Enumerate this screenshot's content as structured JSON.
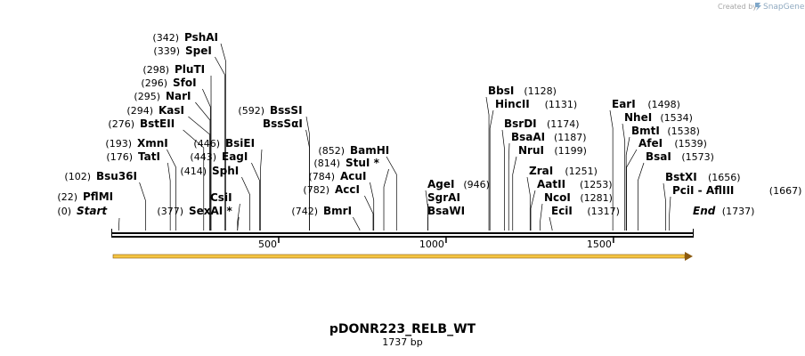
{
  "credit": "Created by",
  "brand": "SnapGene",
  "plasmid": {
    "name": "pDONR223_RELB_WT",
    "length_label": "1737 bp",
    "length": 1737
  },
  "ticks": [
    500,
    1000,
    1500
  ],
  "sites": [
    {
      "name": "Start",
      "pos": 0,
      "pos_label": "(0)",
      "italic": true
    },
    {
      "name": "PflMI",
      "pos": 22,
      "pos_label": "(22)"
    },
    {
      "name": "Bsu36I",
      "pos": 102,
      "pos_label": "(102)"
    },
    {
      "name": "TatI",
      "pos": 176,
      "pos_label": "(176)"
    },
    {
      "name": "XmnI",
      "pos": 193,
      "pos_label": "(193)"
    },
    {
      "name": "BstEII",
      "pos": 276,
      "pos_label": "(276)"
    },
    {
      "name": "KasI",
      "pos": 294,
      "pos_label": "(294)"
    },
    {
      "name": "NarI",
      "pos": 295,
      "pos_label": "(295)"
    },
    {
      "name": "SfoI",
      "pos": 296,
      "pos_label": "(296)"
    },
    {
      "name": "PluTI",
      "pos": 298,
      "pos_label": "(298)"
    },
    {
      "name": "SpeI",
      "pos": 339,
      "pos_label": "(339)"
    },
    {
      "name": "PshAI",
      "pos": 342,
      "pos_label": "(342)"
    },
    {
      "name": "SexAI *",
      "pos": 377,
      "pos_label": "(377)"
    },
    {
      "name": "CsiI",
      "pos": 377,
      "pos_label": ""
    },
    {
      "name": "SphI",
      "pos": 414,
      "pos_label": "(414)"
    },
    {
      "name": "EagI",
      "pos": 443,
      "pos_label": "(443)"
    },
    {
      "name": "BsiEI",
      "pos": 446,
      "pos_label": "(446)"
    },
    {
      "name": "BssSαI",
      "pos": 592,
      "pos_label": ""
    },
    {
      "name": "BssSI",
      "pos": 592,
      "pos_label": "(592)"
    },
    {
      "name": "BmrI",
      "pos": 742,
      "pos_label": "(742)"
    },
    {
      "name": "AccI",
      "pos": 782,
      "pos_label": "(782)"
    },
    {
      "name": "AcuI",
      "pos": 784,
      "pos_label": "(784)"
    },
    {
      "name": "StuI *",
      "pos": 814,
      "pos_label": "(814)"
    },
    {
      "name": "BamHI",
      "pos": 852,
      "pos_label": "(852)"
    },
    {
      "name": "BsaWI",
      "pos": 946,
      "pos_label": ""
    },
    {
      "name": "SgrAI",
      "pos": 946,
      "pos_label": ""
    },
    {
      "name": "AgeI",
      "pos": 946,
      "pos_label": "(946)"
    },
    {
      "name": "BbsI",
      "pos": 1128,
      "pos_label": "(1128)"
    },
    {
      "name": "HincII",
      "pos": 1131,
      "pos_label": "(1131)"
    },
    {
      "name": "BsrDI",
      "pos": 1174,
      "pos_label": "(1174)"
    },
    {
      "name": "BsaAI",
      "pos": 1187,
      "pos_label": "(1187)"
    },
    {
      "name": "NruI",
      "pos": 1199,
      "pos_label": "(1199)"
    },
    {
      "name": "ZraI",
      "pos": 1251,
      "pos_label": "(1251)"
    },
    {
      "name": "AatII",
      "pos": 1253,
      "pos_label": "(1253)"
    },
    {
      "name": "NcoI",
      "pos": 1281,
      "pos_label": "(1281)"
    },
    {
      "name": "EciI",
      "pos": 1317,
      "pos_label": "(1317)"
    },
    {
      "name": "EarI",
      "pos": 1498,
      "pos_label": "(1498)"
    },
    {
      "name": "NheI",
      "pos": 1534,
      "pos_label": "(1534)"
    },
    {
      "name": "BmtI",
      "pos": 1538,
      "pos_label": "(1538)"
    },
    {
      "name": "AfeI",
      "pos": 1539,
      "pos_label": "(1539)"
    },
    {
      "name": "BsaI",
      "pos": 1573,
      "pos_label": "(1573)"
    },
    {
      "name": "BstXI",
      "pos": 1656,
      "pos_label": "(1656)"
    },
    {
      "name": "PciI - AflIII",
      "pos": 1667,
      "pos_label": "(1667)"
    },
    {
      "name": "End",
      "pos": 1737,
      "pos_label": "(1737)",
      "italic": true
    }
  ],
  "colors": {
    "backbone": "#000000",
    "feature_fill": "#f5c542",
    "feature_edge": "#8b5a10",
    "brand": "#7fa7c9"
  }
}
